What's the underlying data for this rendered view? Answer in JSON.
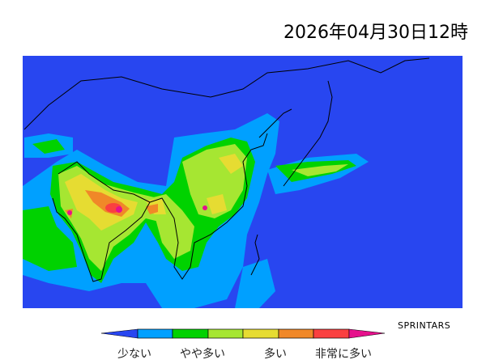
{
  "title": "2026年04月30日12時",
  "credit": "SPRINTARS",
  "legend": {
    "labels": [
      "少ない",
      "やや多い",
      "多い",
      "非常に多い"
    ],
    "colors": [
      "#2846F0",
      "#00A0FF",
      "#00D200",
      "#A6E632",
      "#E6DC32",
      "#F08828",
      "#FA4040",
      "#E6108C"
    ]
  },
  "map": {
    "ocean_color": "#2846F0"
  }
}
